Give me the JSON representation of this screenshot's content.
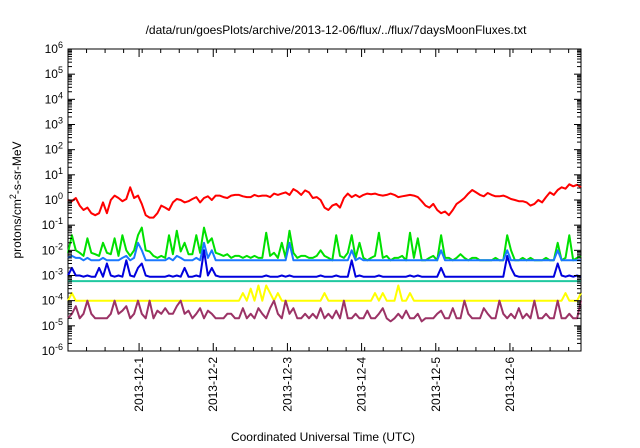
{
  "chart_data": {
    "type": "line",
    "title": "/data/run/goesPlots/archive/2013-12-06/flux/../flux/7daysMoonFluxes.txt",
    "xlabel": "Coordinated Universal Time (UTC)",
    "ylabel": {
      "pre": "protons/cm",
      "sup": "2",
      "post": "-s-sr-MeV"
    },
    "yscale": "log",
    "ylim": [
      1e-06,
      1000000.0
    ],
    "y_ticks": [
      {
        "base": "10",
        "exp": "-6",
        "value": 1e-06
      },
      {
        "base": "10",
        "exp": "-5",
        "value": 1e-05
      },
      {
        "base": "10",
        "exp": "-4",
        "value": 0.0001
      },
      {
        "base": "10",
        "exp": "-3",
        "value": 0.001
      },
      {
        "base": "10",
        "exp": "-2",
        "value": 0.01
      },
      {
        "base": "10",
        "exp": "-1",
        "value": 0.1
      },
      {
        "base": "10",
        "exp": "0",
        "value": 1
      },
      {
        "base": "10",
        "exp": "1",
        "value": 10
      },
      {
        "base": "10",
        "exp": "2",
        "value": 100
      },
      {
        "base": "10",
        "exp": "3",
        "value": 1000
      },
      {
        "base": "10",
        "exp": "4",
        "value": 10000
      },
      {
        "base": "10",
        "exp": "5",
        "value": 100000
      },
      {
        "base": "10",
        "exp": "6",
        "value": 1000000
      }
    ],
    "xlim": [
      "2013-11-30T01:00",
      "2013-12-06T23:00"
    ],
    "x_ticks": [
      "2013-12-1",
      "2013-12-2",
      "2013-12-3",
      "2013-12-4",
      "2013-12-5",
      "2013-12-6"
    ],
    "grid": false,
    "legend": "none",
    "series": [
      {
        "color": "#ff0000",
        "values": [
          1.0,
          0.9,
          1.2,
          0.6,
          0.4,
          0.5,
          0.3,
          0.25,
          0.3,
          0.8,
          0.3,
          1.0,
          1.5,
          1.2,
          0.9,
          1.1,
          3.2,
          1.2,
          1.5,
          0.7,
          0.25,
          0.2,
          0.2,
          0.3,
          0.6,
          0.5,
          0.4,
          0.8,
          1.1,
          1.0,
          0.8,
          0.9,
          1.1,
          1.3,
          0.8,
          1.2,
          1.4,
          1.0,
          1.5,
          1.5,
          1.3,
          1.2,
          1.5,
          1.6,
          1.6,
          1.4,
          1.3,
          1.3,
          1.6,
          1.4,
          1.5,
          1.5,
          1.3,
          1.8,
          1.6,
          1.8,
          2.0,
          1.6,
          2.7,
          2.2,
          1.6,
          2.4,
          2.0,
          1.2,
          1.3,
          1.0,
          0.5,
          0.4,
          0.6,
          0.7,
          0.5,
          1.2,
          1.8,
          1.3,
          1.6,
          1.3,
          1.6,
          1.8,
          1.7,
          1.8,
          1.6,
          1.5,
          1.6,
          1.8,
          1.6,
          1.3,
          1.4,
          1.5,
          1.6,
          1.5,
          1.3,
          0.9,
          0.6,
          0.5,
          0.7,
          0.4,
          0.3,
          0.35,
          0.25,
          0.4,
          0.7,
          0.9,
          1.2,
          1.8,
          2.5,
          2.0,
          1.6,
          1.4,
          1.9,
          1.6,
          1.4,
          1.4,
          1.5,
          1.3,
          1.1,
          1.0,
          0.9,
          0.9,
          0.8,
          0.6,
          0.7,
          1.0,
          0.8,
          1.3,
          2.0,
          1.6,
          2.5,
          3.2,
          2.8,
          4.2,
          3.5,
          4.0,
          3.2
        ]
      },
      {
        "color": "#00e000",
        "values": [
          0.008,
          0.04,
          0.01,
          0.008,
          0.006,
          0.03,
          0.008,
          0.007,
          0.006,
          0.02,
          0.008,
          0.007,
          0.03,
          0.006,
          0.04,
          0.01,
          0.006,
          0.01,
          0.04,
          0.08,
          0.01,
          0.009,
          0.006,
          0.005,
          0.006,
          0.005,
          0.04,
          0.007,
          0.06,
          0.009,
          0.02,
          0.007,
          0.007,
          0.04,
          0.008,
          0.08,
          0.02,
          0.03,
          0.008,
          0.007,
          0.006,
          0.007,
          0.005,
          0.006,
          0.006,
          0.005,
          0.006,
          0.005,
          0.006,
          0.005,
          0.005,
          0.05,
          0.006,
          0.008,
          0.005,
          0.02,
          0.005,
          0.06,
          0.008,
          0.005,
          0.006,
          0.006,
          0.005,
          0.005,
          0.006,
          0.01,
          0.006,
          0.005,
          0.004,
          0.04,
          0.006,
          0.005,
          0.008,
          0.04,
          0.005,
          0.02,
          0.005,
          0.004,
          0.005,
          0.006,
          0.05,
          0.005,
          0.006,
          0.004,
          0.005,
          0.005,
          0.006,
          0.004,
          0.05,
          0.005,
          0.03,
          0.004,
          0.004,
          0.005,
          0.006,
          0.004,
          0.04,
          0.005,
          0.005,
          0.004,
          0.005,
          0.007,
          0.005,
          0.004,
          0.005,
          0.005,
          0.004,
          0.004,
          0.004,
          0.004,
          0.005,
          0.004,
          0.004,
          0.04,
          0.01,
          0.004,
          0.004,
          0.005,
          0.004,
          0.005,
          0.004,
          0.004,
          0.004,
          0.005,
          0.004,
          0.004,
          0.02,
          0.004,
          0.005,
          0.04,
          0.004,
          0.005,
          0.006
        ]
      },
      {
        "color": "#1a78ff",
        "values": [
          0.005,
          0.006,
          0.005,
          0.005,
          0.004,
          0.005,
          0.004,
          0.004,
          0.004,
          0.005,
          0.004,
          0.004,
          0.004,
          0.004,
          0.005,
          0.006,
          0.004,
          0.005,
          0.02,
          0.01,
          0.004,
          0.004,
          0.004,
          0.004,
          0.004,
          0.004,
          0.005,
          0.004,
          0.006,
          0.005,
          0.004,
          0.004,
          0.004,
          0.005,
          0.004,
          0.02,
          0.005,
          0.01,
          0.004,
          0.004,
          0.004,
          0.004,
          0.004,
          0.004,
          0.004,
          0.004,
          0.004,
          0.004,
          0.004,
          0.004,
          0.004,
          0.004,
          0.004,
          0.004,
          0.004,
          0.004,
          0.004,
          0.02,
          0.004,
          0.004,
          0.004,
          0.004,
          0.004,
          0.004,
          0.004,
          0.004,
          0.004,
          0.004,
          0.004,
          0.004,
          0.004,
          0.004,
          0.004,
          0.01,
          0.004,
          0.005,
          0.004,
          0.004,
          0.004,
          0.004,
          0.004,
          0.004,
          0.004,
          0.004,
          0.004,
          0.004,
          0.004,
          0.004,
          0.004,
          0.004,
          0.004,
          0.004,
          0.004,
          0.004,
          0.004,
          0.004,
          0.01,
          0.004,
          0.004,
          0.004,
          0.004,
          0.004,
          0.004,
          0.004,
          0.004,
          0.004,
          0.004,
          0.004,
          0.004,
          0.004,
          0.004,
          0.004,
          0.004,
          0.01,
          0.004,
          0.004,
          0.004,
          0.004,
          0.004,
          0.004,
          0.004,
          0.004,
          0.004,
          0.004,
          0.004,
          0.004,
          0.01,
          0.004,
          0.004,
          0.004,
          0.004,
          0.004,
          0.004
        ]
      },
      {
        "color": "#0000dd",
        "values": [
          0.001,
          0.002,
          0.001,
          0.001,
          0.0009,
          0.001,
          0.0009,
          0.0009,
          0.002,
          0.0009,
          0.003,
          0.001,
          0.0009,
          0.001,
          0.0009,
          0.004,
          0.001,
          0.0009,
          0.002,
          0.003,
          0.001,
          0.0009,
          0.0009,
          0.0009,
          0.0009,
          0.0009,
          0.001,
          0.0009,
          0.001,
          0.0009,
          0.002,
          0.0009,
          0.0009,
          0.001,
          0.0009,
          0.01,
          0.001,
          0.002,
          0.001,
          0.0009,
          0.0009,
          0.0009,
          0.0009,
          0.0009,
          0.0009,
          0.0009,
          0.0009,
          0.0009,
          0.0009,
          0.0009,
          0.0009,
          0.001,
          0.0009,
          0.0009,
          0.0009,
          0.001,
          0.0009,
          0.001,
          0.0009,
          0.0009,
          0.0009,
          0.0009,
          0.0009,
          0.0009,
          0.0009,
          0.001,
          0.0009,
          0.0009,
          0.0009,
          0.001,
          0.0009,
          0.0009,
          0.0009,
          0.004,
          0.0009,
          0.001,
          0.0009,
          0.0009,
          0.0009,
          0.0009,
          0.001,
          0.0009,
          0.0009,
          0.0009,
          0.0009,
          0.0009,
          0.0009,
          0.0009,
          0.001,
          0.0009,
          0.001,
          0.0009,
          0.0009,
          0.0009,
          0.0009,
          0.0009,
          0.002,
          0.0009,
          0.0009,
          0.0009,
          0.0009,
          0.0009,
          0.0009,
          0.0009,
          0.0009,
          0.0009,
          0.0009,
          0.0009,
          0.0009,
          0.0009,
          0.0009,
          0.0009,
          0.0009,
          0.006,
          0.002,
          0.001,
          0.0009,
          0.0009,
          0.0009,
          0.0009,
          0.0009,
          0.0009,
          0.0009,
          0.0009,
          0.0009,
          0.0009,
          0.003,
          0.001,
          0.0009,
          0.001,
          0.0009,
          0.001,
          0.0009
        ]
      },
      {
        "color": "#20c8a0",
        "values": [
          0.0006,
          0.0006,
          0.0006,
          0.0006,
          0.0006,
          0.0006,
          0.0006,
          0.0006,
          0.0006,
          0.0006,
          0.0006,
          0.0006,
          0.0006,
          0.0006,
          0.0006,
          0.0006,
          0.0006,
          0.0006,
          0.0006,
          0.0006,
          0.0006,
          0.0006,
          0.0006,
          0.0006,
          0.0006,
          0.0006,
          0.0006,
          0.0006,
          0.0006,
          0.0006,
          0.0006,
          0.0006,
          0.0006,
          0.0006,
          0.0006,
          0.0006,
          0.0006,
          0.0006,
          0.0006,
          0.0006,
          0.0006,
          0.0006,
          0.0006,
          0.0006,
          0.0006,
          0.0006,
          0.0006,
          0.0006,
          0.0006,
          0.0006,
          0.0006,
          0.0006,
          0.0006,
          0.0006,
          0.0006,
          0.0006,
          0.0006,
          0.0006,
          0.0006,
          0.0006,
          0.0006,
          0.0006,
          0.0006,
          0.0006,
          0.0006,
          0.0006,
          0.0006,
          0.0006,
          0.0006,
          0.0006,
          0.0006,
          0.0006,
          0.0006,
          0.0006,
          0.0006,
          0.0006,
          0.0006,
          0.0006,
          0.0006,
          0.0006,
          0.0006,
          0.0006,
          0.0006,
          0.0006,
          0.0006,
          0.0006,
          0.0006,
          0.0006,
          0.0006,
          0.0006,
          0.0006,
          0.0006,
          0.0006,
          0.0006,
          0.0006,
          0.0006,
          0.0006,
          0.0006,
          0.0006,
          0.0006,
          0.0006,
          0.0006,
          0.0006,
          0.0006,
          0.0006,
          0.0006,
          0.0006,
          0.0006,
          0.0006,
          0.0006,
          0.0006,
          0.0006,
          0.0006,
          0.0006,
          0.0006,
          0.0006,
          0.0006,
          0.0006,
          0.0006,
          0.0006,
          0.0006,
          0.0006,
          0.0006,
          0.0006,
          0.0006,
          0.0006,
          0.0006,
          0.0006,
          0.0006,
          0.0006,
          0.0006,
          0.0006,
          0.0006
        ]
      },
      {
        "color": "#ffff00",
        "values": [
          0.0001,
          0.0002,
          0.0001,
          0.0001,
          0.0001,
          0.0001,
          0.0001,
          0.0001,
          0.0001,
          0.0001,
          0.0001,
          0.0001,
          0.0001,
          0.0001,
          0.0001,
          0.0001,
          0.0001,
          0.0001,
          0.0001,
          0.0001,
          0.0001,
          0.0001,
          0.0001,
          0.0001,
          0.0001,
          0.0001,
          0.0001,
          0.0001,
          0.0001,
          0.0001,
          0.0001,
          0.0001,
          0.0001,
          0.0001,
          0.0001,
          0.0001,
          0.0001,
          0.0001,
          0.0001,
          0.0001,
          0.0001,
          0.0001,
          0.0001,
          0.0001,
          0.0001,
          0.0002,
          0.0001,
          0.0003,
          0.0001,
          0.0004,
          0.0001,
          0.0004,
          0.0002,
          0.0001,
          0.0002,
          0.0001,
          0.0001,
          0.0001,
          0.0001,
          0.0001,
          0.0001,
          0.0001,
          0.0001,
          0.0001,
          0.0001,
          0.0001,
          0.0002,
          0.0001,
          0.0001,
          0.0001,
          0.0001,
          0.0001,
          0.0001,
          0.0001,
          0.0001,
          0.0001,
          0.0001,
          0.0001,
          0.0001,
          0.0002,
          0.0001,
          0.0002,
          0.0001,
          0.0001,
          0.0001,
          0.0004,
          0.0001,
          0.0001,
          0.0002,
          0.0001,
          0.0001,
          0.0001,
          0.0001,
          0.0001,
          0.0001,
          0.0001,
          0.0001,
          0.0001,
          0.0001,
          0.0001,
          0.0001,
          0.0001,
          0.0001,
          0.0001,
          0.0001,
          0.0001,
          0.0001,
          0.0001,
          0.0001,
          0.0001,
          0.0001,
          0.0001,
          0.0001,
          0.0001,
          0.0001,
          0.0001,
          0.0001,
          0.0001,
          0.0001,
          0.0001,
          0.0001,
          0.0001,
          0.0001,
          0.0001,
          0.0001,
          0.0001,
          0.0001,
          0.0001,
          0.0002,
          0.0001,
          0.0001,
          0.0001,
          0.0002
        ]
      },
      {
        "color": "#9b3366",
        "values": [
          2e-05,
          3e-05,
          6e-05,
          2e-05,
          3e-05,
          0.0001,
          3e-05,
          2e-05,
          2e-05,
          2e-05,
          2e-05,
          3e-05,
          0.0001,
          3e-05,
          4e-05,
          6e-05,
          2e-05,
          3e-05,
          0.0001,
          3e-05,
          2e-05,
          0.0001,
          2e-05,
          4e-05,
          3e-05,
          5e-05,
          3e-05,
          3e-05,
          6e-05,
          0.0001,
          3e-05,
          4e-05,
          2e-05,
          3e-05,
          5e-05,
          2e-05,
          4e-05,
          3e-05,
          2e-05,
          2e-05,
          2e-05,
          3e-05,
          3e-05,
          2e-05,
          2e-05,
          5e-05,
          2e-05,
          3e-05,
          2e-05,
          5e-05,
          3e-05,
          2e-05,
          5e-05,
          0.0001,
          3e-05,
          2e-05,
          0.0001,
          3e-05,
          5e-05,
          2e-05,
          2e-05,
          3e-05,
          2e-05,
          3e-05,
          2e-05,
          5e-05,
          2e-05,
          3e-05,
          2e-05,
          4e-05,
          2e-05,
          0.0001,
          2e-05,
          2e-05,
          3e-05,
          2e-05,
          2e-05,
          4e-05,
          2e-05,
          2e-05,
          3e-05,
          5e-05,
          2e-05,
          1.5e-05,
          2e-05,
          3e-05,
          2e-05,
          4e-05,
          2e-05,
          2e-05,
          3e-05,
          1.5e-05,
          2e-05,
          2e-05,
          2e-05,
          3e-05,
          4e-05,
          2e-05,
          2e-05,
          5e-05,
          2e-05,
          2e-05,
          0.0001,
          3e-05,
          2e-05,
          2e-05,
          2e-05,
          5e-05,
          3e-05,
          2e-05,
          2e-05,
          0.0001,
          3e-05,
          2e-05,
          3e-05,
          2e-05,
          5e-05,
          2e-05,
          3e-05,
          2e-05,
          0.0001,
          2e-05,
          2e-05,
          3e-05,
          2e-05,
          2e-05,
          0.0001,
          2e-05,
          2e-05,
          3e-05,
          2e-05,
          2e-05,
          0.0001
        ]
      }
    ]
  }
}
